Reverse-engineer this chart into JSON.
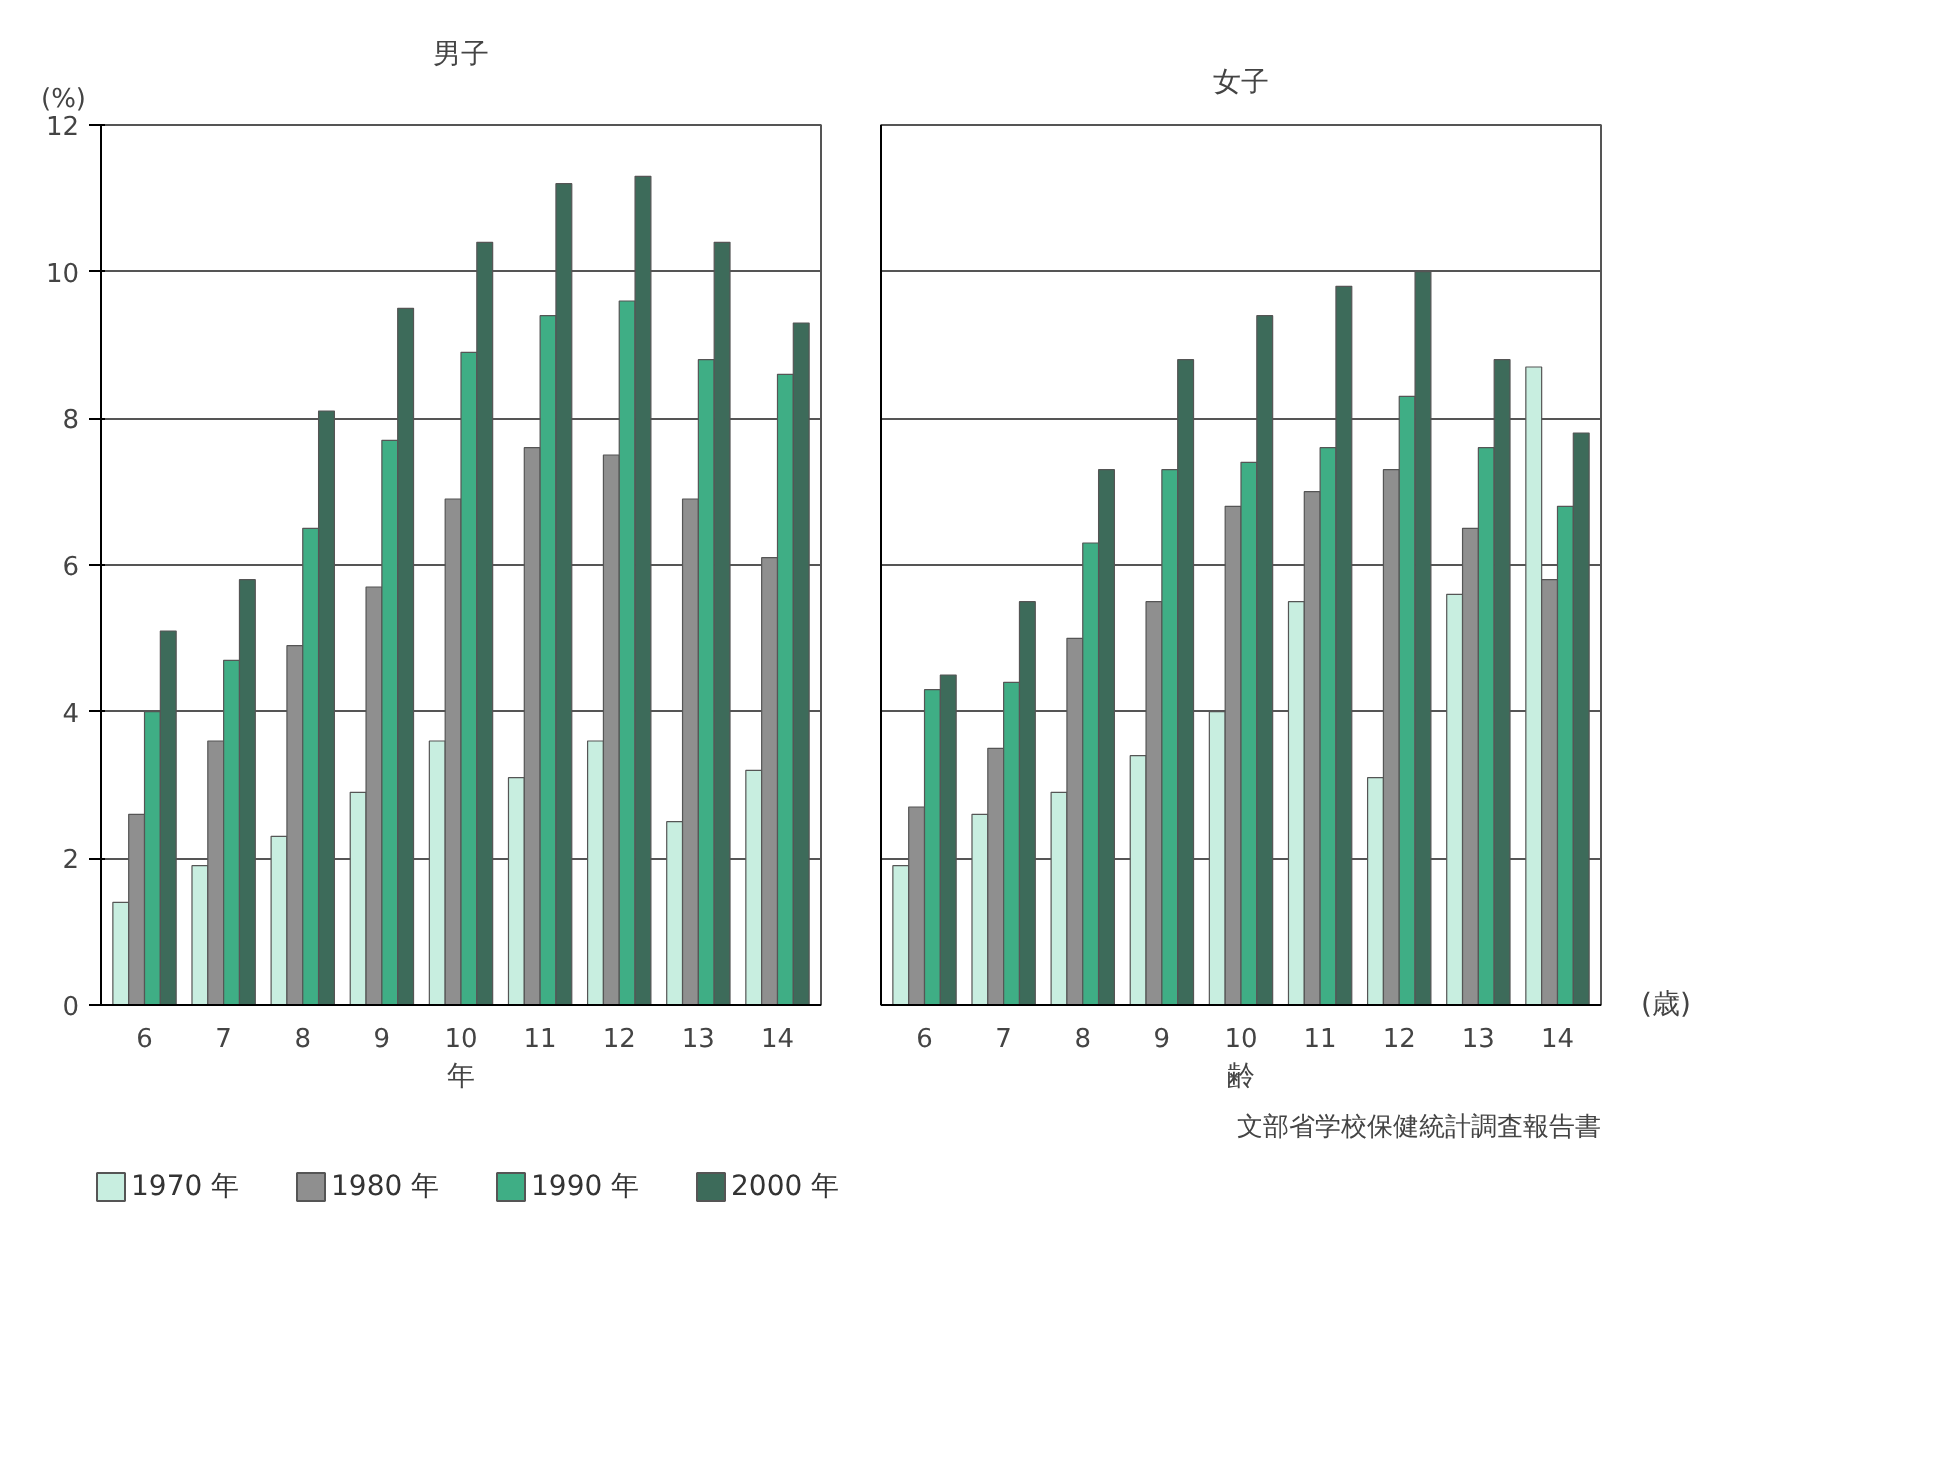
{
  "chart_data": [
    {
      "type": "bar",
      "title": "男子",
      "xlabel": "年",
      "ylabel": "(%)",
      "categories": [
        "6",
        "7",
        "8",
        "9",
        "10",
        "11",
        "12",
        "13",
        "14"
      ],
      "ylim": [
        0,
        12
      ],
      "yticks": [
        0,
        2,
        4,
        6,
        8,
        10,
        12
      ],
      "grid": "y",
      "legend": "bottom",
      "series": [
        {
          "name": "1970 年",
          "color": "#c8eee0",
          "values": [
            1.4,
            1.9,
            2.3,
            2.9,
            3.6,
            3.1,
            3.6,
            2.5,
            3.2
          ]
        },
        {
          "name": "1980 年",
          "color": "#8f8f8f",
          "values": [
            2.6,
            3.6,
            4.9,
            5.7,
            6.9,
            7.6,
            7.5,
            6.9,
            6.1
          ]
        },
        {
          "name": "1990 年",
          "color": "#3fae85",
          "values": [
            4.0,
            4.7,
            6.5,
            7.7,
            8.9,
            9.4,
            9.6,
            8.8,
            8.6
          ]
        },
        {
          "name": "2000 年",
          "color": "#3d6b5a",
          "values": [
            5.1,
            5.8,
            8.1,
            9.5,
            10.4,
            11.2,
            11.3,
            10.4,
            9.3
          ]
        }
      ]
    },
    {
      "type": "bar",
      "title": "女子",
      "xlabel": "齢",
      "categories": [
        "6",
        "7",
        "8",
        "9",
        "10",
        "11",
        "12",
        "13",
        "14"
      ],
      "ylim": [
        0,
        12
      ],
      "yticks": [
        0,
        2,
        4,
        6,
        8,
        10,
        12
      ],
      "grid": "y",
      "tick_labels": "x",
      "annotations": [
        "(歳)",
        "文部省学校保健統計調査報告書"
      ],
      "series": [
        {
          "color": "#c8eee0",
          "values": [
            1.9,
            2.6,
            2.9,
            3.4,
            4.0,
            5.5,
            3.1,
            5.6,
            8.7
          ]
        },
        {
          "color": "#8f8f8f",
          "values": [
            2.7,
            3.5,
            5.0,
            5.5,
            6.8,
            7.0,
            7.3,
            6.5,
            5.8
          ]
        },
        {
          "color": "#3fae85",
          "values": [
            4.3,
            4.4,
            6.3,
            7.3,
            7.4,
            7.6,
            8.3,
            7.6,
            6.8
          ]
        },
        {
          "color": "#3d6b5a",
          "values": [
            4.5,
            5.5,
            7.3,
            8.8,
            9.4,
            9.8,
            10.0,
            8.8,
            7.8
          ]
        }
      ]
    }
  ]
}
